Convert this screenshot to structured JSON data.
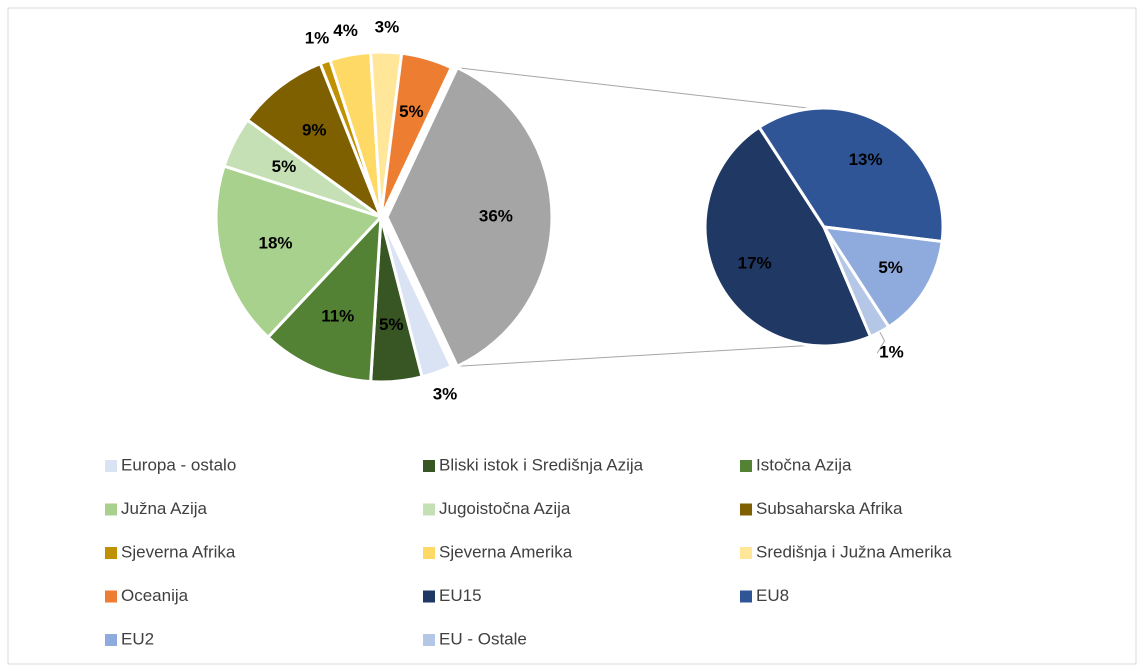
{
  "chart_data": {
    "type": "pie",
    "categories": [
      "Europa - ostalo",
      "Bliski istok i Središnja Azija",
      "Istočna Azija",
      "Južna Azija",
      "Jugoistočna  Azija",
      "Subsaharska Afrika",
      "Sjeverna Afrika",
      "Sjeverna Amerika",
      "Središnja i Južna Amerika",
      "Oceanija"
    ],
    "values": [
      3,
      5,
      11,
      18,
      5,
      9,
      1,
      4,
      3,
      5
    ],
    "value_labels": [
      "3%",
      "5%",
      "11%",
      "18%",
      "5%",
      "9%",
      "1%",
      "4%",
      "3%",
      "5%"
    ],
    "colors": [
      "#dae3f3",
      "#375623",
      "#548235",
      "#a9d18e",
      "#c5e0b4",
      "#7f6000",
      "#bf9000",
      "#ffd966",
      "#ffe699",
      "#ed7d31"
    ],
    "other": {
      "value": 36,
      "label": "36%",
      "color": "#a5a5a5"
    },
    "secondary": {
      "categories": [
        "EU15",
        "EU8",
        "EU2",
        "EU - Ostale"
      ],
      "values": [
        17,
        13,
        5,
        1
      ],
      "value_labels": [
        "17%",
        "13%",
        "5%",
        "1%"
      ],
      "colors": [
        "#203864",
        "#2f5597",
        "#8faadc",
        "#b4c7e7"
      ]
    }
  }
}
